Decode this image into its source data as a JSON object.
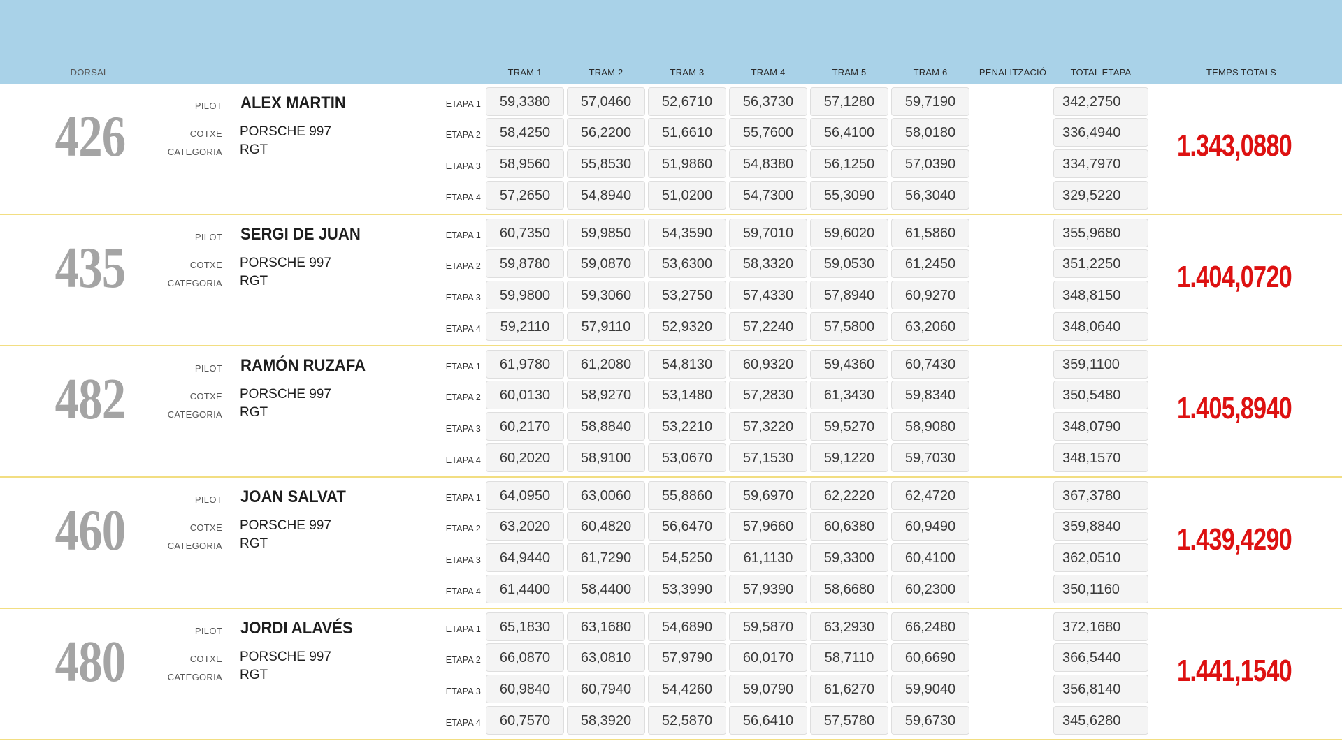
{
  "header": {
    "dorsal": "DORSAL",
    "tram1": "TRAM 1",
    "tram2": "TRAM 2",
    "tram3": "TRAM 3",
    "tram4": "TRAM 4",
    "tram5": "TRAM 5",
    "tram6": "TRAM 6",
    "penalty": "PENALITZACIÓ",
    "stage_total": "TOTAL ETAPA",
    "grand_total": "TEMPS TOTALS"
  },
  "labels": {
    "pilot": "PILOT",
    "car": "COTXE",
    "category": "CATEGORIA",
    "stages": [
      "ETAPA 1",
      "ETAPA 2",
      "ETAPA 3",
      "ETAPA 4"
    ]
  },
  "colors": {
    "header_bg": "#a9d2e8",
    "separator": "#f2de82",
    "grand_total": "#dd1111",
    "dorsal": "#a4a4a4"
  },
  "entries": [
    {
      "dorsal": "426",
      "pilot": "ALEX MARTIN",
      "car": "PORSCHE 997",
      "category": "RGT",
      "stages": [
        {
          "trams": [
            "59,3380",
            "57,0460",
            "52,6710",
            "56,3730",
            "57,1280",
            "59,7190"
          ],
          "total": "342,2750"
        },
        {
          "trams": [
            "58,4250",
            "56,2200",
            "51,6610",
            "55,7600",
            "56,4100",
            "58,0180"
          ],
          "total": "336,4940"
        },
        {
          "trams": [
            "58,9560",
            "55,8530",
            "51,9860",
            "54,8380",
            "56,1250",
            "57,0390"
          ],
          "total": "334,7970"
        },
        {
          "trams": [
            "57,2650",
            "54,8940",
            "51,0200",
            "54,7300",
            "55,3090",
            "56,3040"
          ],
          "total": "329,5220"
        }
      ],
      "grand_total": "1.343,0880"
    },
    {
      "dorsal": "435",
      "pilot": "SERGI DE JUAN",
      "car": "PORSCHE 997",
      "category": "RGT",
      "stages": [
        {
          "trams": [
            "60,7350",
            "59,9850",
            "54,3590",
            "59,7010",
            "59,6020",
            "61,5860"
          ],
          "total": "355,9680"
        },
        {
          "trams": [
            "59,8780",
            "59,0870",
            "53,6300",
            "58,3320",
            "59,0530",
            "61,2450"
          ],
          "total": "351,2250"
        },
        {
          "trams": [
            "59,9800",
            "59,3060",
            "53,2750",
            "57,4330",
            "57,8940",
            "60,9270"
          ],
          "total": "348,8150"
        },
        {
          "trams": [
            "59,2110",
            "57,9110",
            "52,9320",
            "57,2240",
            "57,5800",
            "63,2060"
          ],
          "total": "348,0640"
        }
      ],
      "grand_total": "1.404,0720"
    },
    {
      "dorsal": "482",
      "pilot": "RAMÓN RUZAFA",
      "car": "PORSCHE 997",
      "category": "RGT",
      "stages": [
        {
          "trams": [
            "61,9780",
            "61,2080",
            "54,8130",
            "60,9320",
            "59,4360",
            "60,7430"
          ],
          "total": "359,1100"
        },
        {
          "trams": [
            "60,0130",
            "58,9270",
            "53,1480",
            "57,2830",
            "61,3430",
            "59,8340"
          ],
          "total": "350,5480"
        },
        {
          "trams": [
            "60,2170",
            "58,8840",
            "53,2210",
            "57,3220",
            "59,5270",
            "58,9080"
          ],
          "total": "348,0790"
        },
        {
          "trams": [
            "60,2020",
            "58,9100",
            "53,0670",
            "57,1530",
            "59,1220",
            "59,7030"
          ],
          "total": "348,1570"
        }
      ],
      "grand_total": "1.405,8940"
    },
    {
      "dorsal": "460",
      "pilot": "JOAN SALVAT",
      "car": "PORSCHE 997",
      "category": "RGT",
      "stages": [
        {
          "trams": [
            "64,0950",
            "63,0060",
            "55,8860",
            "59,6970",
            "62,2220",
            "62,4720"
          ],
          "total": "367,3780"
        },
        {
          "trams": [
            "63,2020",
            "60,4820",
            "56,6470",
            "57,9660",
            "60,6380",
            "60,9490"
          ],
          "total": "359,8840"
        },
        {
          "trams": [
            "64,9440",
            "61,7290",
            "54,5250",
            "61,1130",
            "59,3300",
            "60,4100"
          ],
          "total": "362,0510"
        },
        {
          "trams": [
            "61,4400",
            "58,4400",
            "53,3990",
            "57,9390",
            "58,6680",
            "60,2300"
          ],
          "total": "350,1160"
        }
      ],
      "grand_total": "1.439,4290"
    },
    {
      "dorsal": "480",
      "pilot": "JORDI ALAVÉS",
      "car": "PORSCHE 997",
      "category": "RGT",
      "stages": [
        {
          "trams": [
            "65,1830",
            "63,1680",
            "54,6890",
            "59,5870",
            "63,2930",
            "66,2480"
          ],
          "total": "372,1680"
        },
        {
          "trams": [
            "66,0870",
            "63,0810",
            "57,9790",
            "60,0170",
            "58,7110",
            "60,6690"
          ],
          "total": "366,5440"
        },
        {
          "trams": [
            "60,9840",
            "60,7940",
            "54,4260",
            "59,0790",
            "61,6270",
            "59,9040"
          ],
          "total": "356,8140"
        },
        {
          "trams": [
            "60,7570",
            "58,3920",
            "52,5870",
            "56,6410",
            "57,5780",
            "59,6730"
          ],
          "total": "345,6280"
        }
      ],
      "grand_total": "1.441,1540"
    }
  ]
}
